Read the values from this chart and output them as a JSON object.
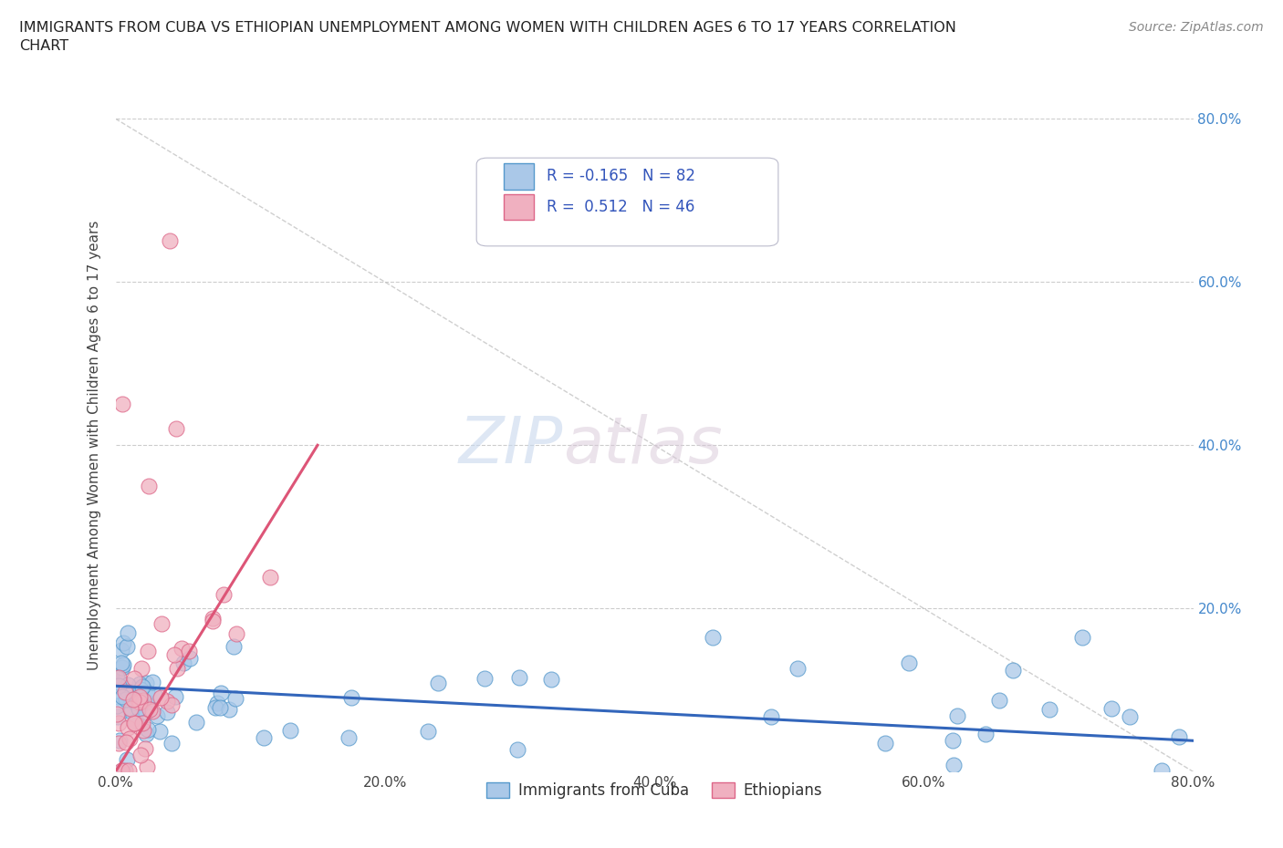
{
  "title": "IMMIGRANTS FROM CUBA VS ETHIOPIAN UNEMPLOYMENT AMONG WOMEN WITH CHILDREN AGES 6 TO 17 YEARS CORRELATION\nCHART",
  "source": "Source: ZipAtlas.com",
  "ylabel": "Unemployment Among Women with Children Ages 6 to 17 years",
  "xlim": [
    0.0,
    0.8
  ],
  "ylim": [
    0.0,
    0.8
  ],
  "xtick_labels": [
    "0.0%",
    "20.0%",
    "40.0%",
    "60.0%",
    "80.0%"
  ],
  "xtick_vals": [
    0.0,
    0.2,
    0.4,
    0.6,
    0.8
  ],
  "right_ytick_labels": [
    "80.0%",
    "60.0%",
    "40.0%",
    "20.0%"
  ],
  "right_ytick_vals": [
    0.8,
    0.6,
    0.4,
    0.2
  ],
  "cuba_color": "#aac8e8",
  "cuba_edge_color": "#5599cc",
  "ethiopia_color": "#f0b0c0",
  "ethiopia_edge_color": "#dd6688",
  "cuba_R": -0.165,
  "cuba_N": 82,
  "ethiopia_R": 0.512,
  "ethiopia_N": 46,
  "cuba_line_color": "#3366bb",
  "ethiopia_line_color": "#dd5577",
  "diag_line_color": "#bbbbbb",
  "watermark_zip": "ZIP",
  "watermark_atlas": "atlas",
  "legend_label_cuba": "Immigrants from Cuba",
  "legend_label_eth": "Ethiopians",
  "background_color": "#ffffff",
  "grid_color": "#cccccc"
}
